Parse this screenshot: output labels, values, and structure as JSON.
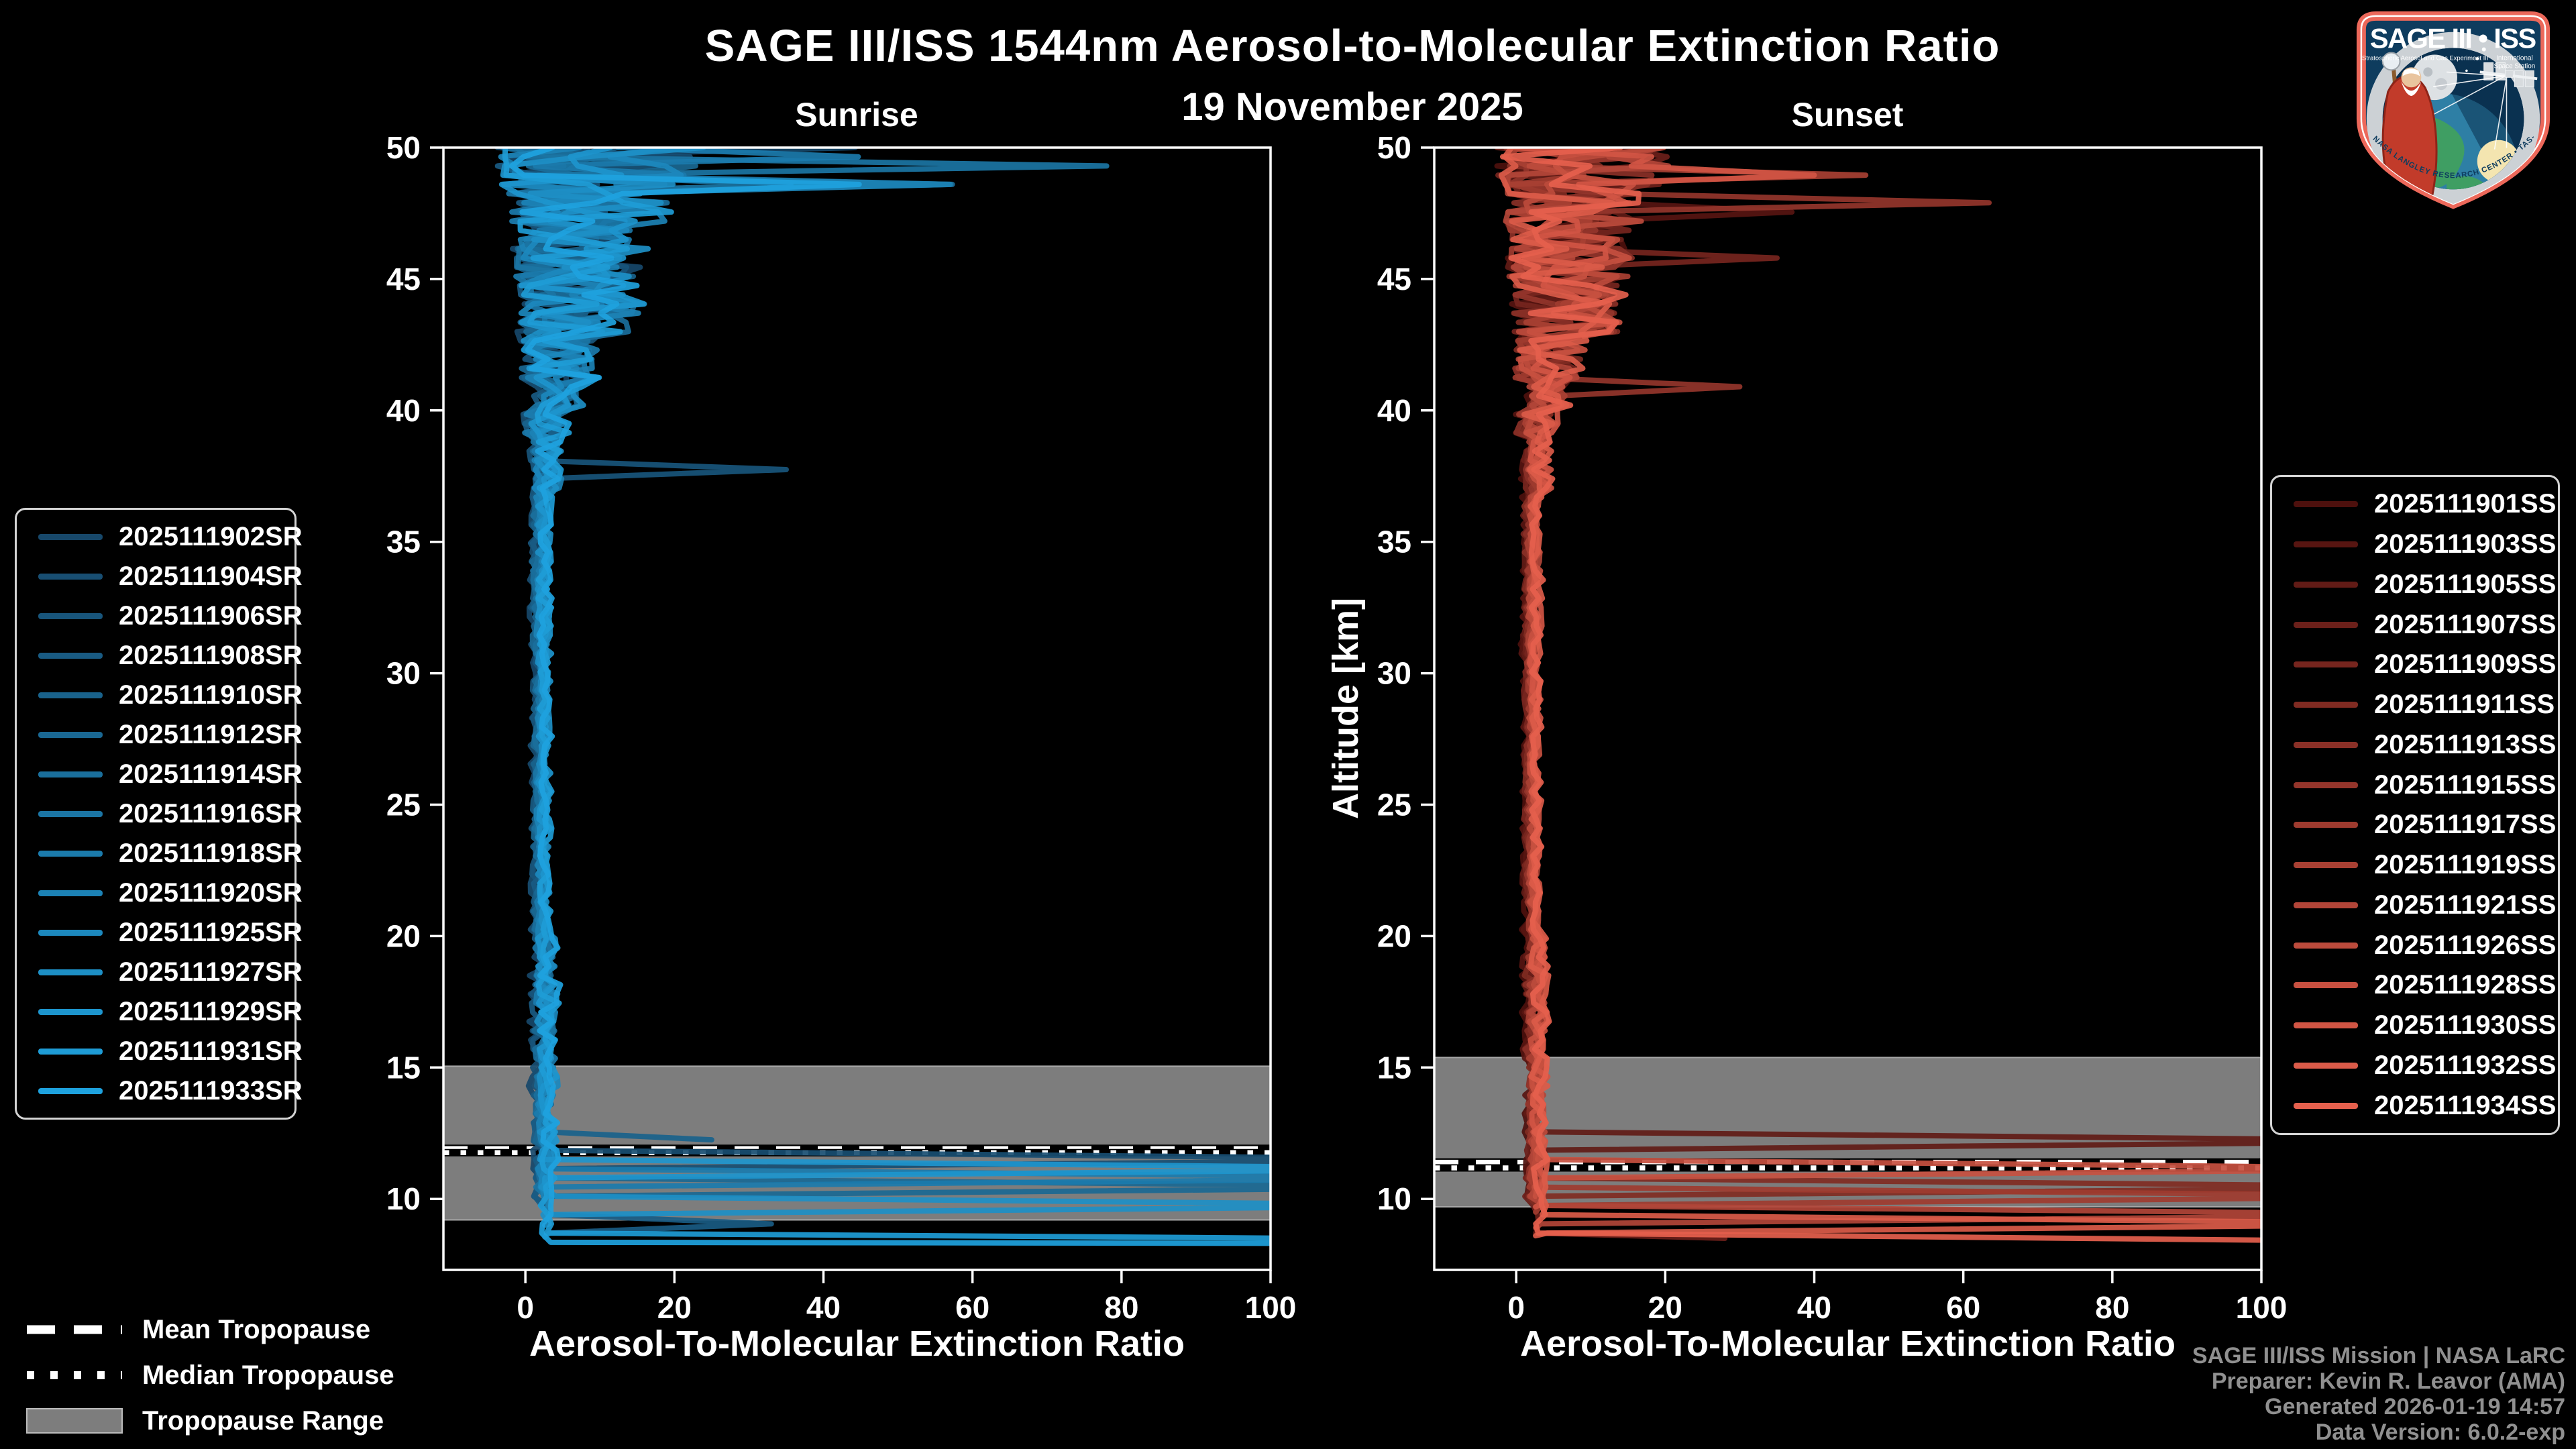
{
  "header": {
    "title": "SAGE III/ISS 1544nm Aerosol-to-Molecular Extinction Ratio",
    "subtitle": "19 November 2025"
  },
  "tropopause_legend": {
    "mean_label": "Mean Tropopause",
    "median_label": "Median Tropopause",
    "range_label": "Tropopause Range"
  },
  "footer": {
    "lines": [
      "SAGE III/ISS Mission | NASA LaRC",
      "Preparer: Kevin R. Leavor (AMA)",
      "Generated 2026-01-19 14:57",
      "Data Version: 6.0.2-exp"
    ]
  },
  "logo": {
    "title": "SAGE III • ISS",
    "subtitle_left": "Stratospheric Aerosol and Gas Experiment III",
    "subtitle_right_1": "International",
    "subtitle_right_2": "Space Station",
    "ring_text": "BALL • NASA LANGLEY RESEARCH CENTER • TAS-I • ESA",
    "border_color": "#ec685a",
    "field_color": "#0e3c5e"
  },
  "chart_data": {
    "type": "line",
    "title": "SAGE III/ISS 1544nm Aerosol-to-Molecular Extinction Ratio",
    "subtitle": "19 November 2025",
    "xlabel": "Aerosol-To-Molecular Extinction Ratio",
    "ylabel": "Altitude [km]",
    "xlim": [
      -11,
      100
    ],
    "ylim": [
      7.3,
      50
    ],
    "xticks": [
      0,
      20,
      40,
      60,
      80,
      100
    ],
    "yticks": [
      10,
      15,
      20,
      25,
      30,
      35,
      40,
      45,
      50
    ],
    "grid": false,
    "background": "#000000",
    "tropopause_band_color": "#7d7d7d",
    "panels": [
      {
        "id": "sunrise",
        "title": "Sunrise",
        "color_start": "#17486a",
        "color_end": "#1ea2de",
        "noise_scale": 1.0,
        "spike_chance": 0.05,
        "tropopause": {
          "range_km": [
            9.2,
            15.05
          ],
          "mean_km": 11.9,
          "median_km": 11.76
        },
        "series": [
          {
            "name": "2025111902SR",
            "seed": 3,
            "bottom_km": 10.2
          },
          {
            "name": "2025111904SR",
            "seed": 7,
            "bottom_km": 10.8,
            "clouds": [
              [
                11.55,
                130
              ]
            ]
          },
          {
            "name": "2025111906SR",
            "seed": 11,
            "bottom_km": 9.8,
            "spikes": [
              [
                37.7,
                35
              ]
            ]
          },
          {
            "name": "2025111908SR",
            "seed": 13,
            "bottom_km": 8.55,
            "clouds": [
              [
                9.05,
                33
              ]
            ]
          },
          {
            "name": "2025111910SR",
            "seed": 17,
            "bottom_km": 12.25,
            "tail_val": 25
          },
          {
            "name": "2025111912SR",
            "seed": 19,
            "bottom_km": 9.9,
            "clouds": [
              [
                10.4,
                130
              ]
            ]
          },
          {
            "name": "2025111914SR",
            "seed": 23,
            "bottom_km": 10.5
          },
          {
            "name": "2025111916SR",
            "seed": 29,
            "bottom_km": 10.1,
            "spikes": [
              [
                49.3,
                78
              ]
            ]
          },
          {
            "name": "2025111918SR",
            "seed": 31,
            "bottom_km": 10.2,
            "clouds": [
              [
                10.75,
                130
              ]
            ]
          },
          {
            "name": "2025111920SR",
            "seed": 37,
            "bottom_km": 9.6,
            "spikes": [
              [
                48.6,
                57
              ]
            ]
          },
          {
            "name": "2025111925SR",
            "seed": 41,
            "bottom_km": 10.3
          },
          {
            "name": "2025111927SR",
            "seed": 43,
            "bottom_km": 9.0,
            "clouds": [
              [
                9.6,
                130
              ]
            ]
          },
          {
            "name": "2025111929SR",
            "seed": 47,
            "bottom_km": 10.6,
            "clouds": [
              [
                11.15,
                130
              ]
            ]
          },
          {
            "name": "2025111931SR",
            "seed": 53,
            "bottom_km": 8.45,
            "tail_val": 130
          },
          {
            "name": "2025111933SR",
            "seed": 59,
            "bottom_km": 8.3,
            "tail_val": 130
          }
        ]
      },
      {
        "id": "sunset",
        "title": "Sunset",
        "color_start": "#4d100d",
        "color_end": "#e5604d",
        "noise_scale": 0.85,
        "spike_chance": 0.03,
        "tropopause": {
          "range_km": [
            9.7,
            15.38
          ],
          "mean_km": 11.38,
          "median_km": 11.18
        },
        "series": [
          {
            "name": "2025111901SS",
            "seed": 61,
            "bottom_km": 10.4
          },
          {
            "name": "2025111903SS",
            "seed": 67,
            "bottom_km": 10.0,
            "spikes": [
              [
                47.5,
                37
              ]
            ]
          },
          {
            "name": "2025111905SS",
            "seed": 71,
            "bottom_km": 11.3,
            "clouds": [
              [
                12.1,
                130
              ]
            ]
          },
          {
            "name": "2025111907SS",
            "seed": 73,
            "bottom_km": 8.5,
            "tail_val": 28
          },
          {
            "name": "2025111909SS",
            "seed": 79,
            "bottom_km": 9.9,
            "spikes": [
              [
                45.7,
                35
              ]
            ]
          },
          {
            "name": "2025111911SS",
            "seed": 83,
            "bottom_km": 9.8,
            "clouds": [
              [
                10.5,
                130
              ]
            ]
          },
          {
            "name": "2025111913SS",
            "seed": 89,
            "bottom_km": 10.6
          },
          {
            "name": "2025111915SS",
            "seed": 97,
            "bottom_km": 10.2,
            "spikes": [
              [
                41.0,
                30
              ]
            ]
          },
          {
            "name": "2025111917SS",
            "seed": 101,
            "bottom_km": 9.5,
            "clouds": [
              [
                10.15,
                130
              ]
            ]
          },
          {
            "name": "2025111919SS",
            "seed": 103,
            "bottom_km": 10.0
          },
          {
            "name": "2025111921SS",
            "seed": 107,
            "bottom_km": 8.9,
            "clouds": [
              [
                9.3,
                130
              ]
            ]
          },
          {
            "name": "2025111926SS",
            "seed": 109,
            "bottom_km": 10.3
          },
          {
            "name": "2025111928SS",
            "seed": 113,
            "bottom_km": 10.1,
            "clouds": [
              [
                11.0,
                130
              ]
            ]
          },
          {
            "name": "2025111930SS",
            "seed": 127,
            "bottom_km": 9.7,
            "spikes": [
              [
                49.0,
                40
              ]
            ]
          },
          {
            "name": "2025111932SS",
            "seed": 131,
            "bottom_km": 8.6,
            "clouds": [
              [
                8.9,
                130
              ]
            ]
          },
          {
            "name": "2025111934SS",
            "seed": 137,
            "bottom_km": 8.35,
            "tail_val": 130
          }
        ]
      }
    ]
  }
}
